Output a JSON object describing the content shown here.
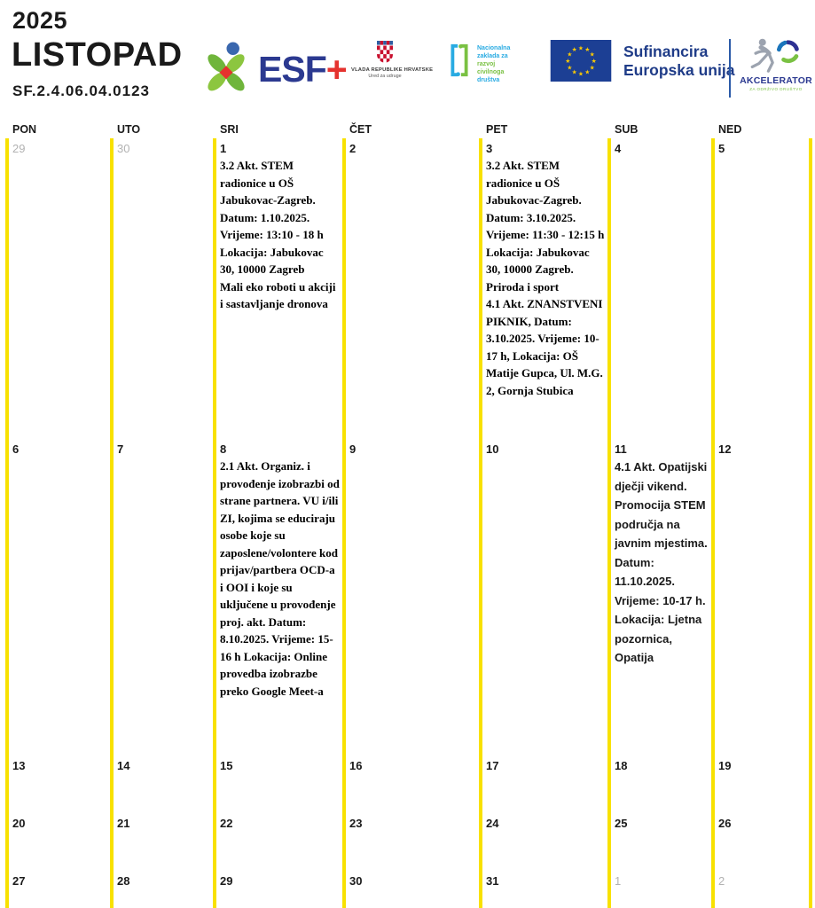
{
  "title": {
    "year": "2025",
    "month": "LISTOPAD",
    "code": "SF.2.4.06.04.0123"
  },
  "logos": {
    "esf": {
      "label": "ESF",
      "plus": "+"
    },
    "vlada": {
      "line1": "VLADA REPUBLIKE HRVATSKE",
      "line2": "Ured za udruge"
    },
    "zaklada": {
      "lines": [
        "Nacionalna",
        "zaklada za",
        "razvoj",
        "civilnoga",
        "društva"
      ],
      "line_colors": [
        "#29ABE2",
        "#29ABE2",
        "#7AC143",
        "#7AC143",
        "#29ABE2"
      ]
    },
    "eu": {
      "line1": "Sufinancira",
      "line2": "Europska unija"
    },
    "akcelerator": {
      "name": "AKCELERATOR",
      "tagline": "ZA ODRŽIVO DRUŠTVO"
    }
  },
  "calendar": {
    "weekdays": [
      "PON",
      "UTO",
      "SRI",
      "ČET",
      "PET",
      "SUB",
      "NED"
    ],
    "weeks": [
      [
        {
          "day": "29",
          "outside": true
        },
        {
          "day": "30",
          "outside": true
        },
        {
          "day": "1",
          "event": {
            "style": "serif",
            "paragraphs": [
              "3.2 Akt. STEM radionice u OŠ Jabukovac-Zagreb. Datum: 1.10.2025. Vrijeme: 13:10 - 18 h Lokacija: Jabukovac 30, 10000 Zagreb",
              "Mali eko roboti u akciji i sastavljanje dronova"
            ]
          }
        },
        {
          "day": "2"
        },
        {
          "day": "3",
          "event": {
            "style": "serif",
            "paragraphs": [
              "3.2 Akt. STEM radionice u OŠ Jabukovac-Zagreb. Datum: 3.10.2025. Vrijeme: 11:30 - 12:15 h Lokacija: Jabukovac 30, 10000 Zagreb.",
              "Priroda i sport",
              "4.1 Akt. ZNANSTVENI PIKNIK, Datum: 3.10.2025. Vrijeme: 10-17 h, Lokacija: OŠ Matije Gupca, Ul. M.G. 2, Gornja Stubica"
            ]
          }
        },
        {
          "day": "4"
        },
        {
          "day": "5"
        }
      ],
      [
        {
          "day": "6"
        },
        {
          "day": "7"
        },
        {
          "day": "8",
          "event": {
            "style": "serif",
            "paragraphs": [
              "2.1 Akt. Organiz. i provođenje izobrazbi od strane partnera. VU i/ili ZI, kojima se educiraju osobe koje su zaposlene/volontere kod prijav/partbera OCD-a i OOI i koje su uključene u provođenje proj. akt. Datum: 8.10.2025. Vrijeme: 15-16 h Lokacija: Online provedba izobrazbe preko Google Meet-a"
            ]
          }
        },
        {
          "day": "9"
        },
        {
          "day": "10"
        },
        {
          "day": "11",
          "event": {
            "style": "sans",
            "paragraphs": [
              "4.1 Akt. Opatijski dječji vikend. Promocija STEM područja na javnim mjestima. Datum: 11.10.2025. Vrijeme: 10-17 h. Lokacija: Ljetna pozornica, Opatija"
            ]
          }
        },
        {
          "day": "12"
        }
      ],
      [
        {
          "day": "13"
        },
        {
          "day": "14"
        },
        {
          "day": "15"
        },
        {
          "day": "16"
        },
        {
          "day": "17"
        },
        {
          "day": "18"
        },
        {
          "day": "19"
        }
      ],
      [
        {
          "day": "20"
        },
        {
          "day": "21"
        },
        {
          "day": "22"
        },
        {
          "day": "23"
        },
        {
          "day": "24"
        },
        {
          "day": "25"
        },
        {
          "day": "26"
        }
      ],
      [
        {
          "day": "27"
        },
        {
          "day": "28"
        },
        {
          "day": "29"
        },
        {
          "day": "30"
        },
        {
          "day": "31"
        },
        {
          "day": "1",
          "outside": true
        },
        {
          "day": "2",
          "outside": true
        }
      ]
    ]
  },
  "colors": {
    "column_line_yellow": "#F8E100",
    "esf_blue": "#2B3990",
    "esf_red": "#E5322E",
    "esf_leaf_green": "#8CC63F",
    "eu_flag_blue": "#1C3F94",
    "eu_star_yellow": "#FFCC00",
    "eu_text_blue": "#1F3C88",
    "zaklada_blue": "#29ABE2",
    "zaklada_green": "#7AC143",
    "coat_red": "#C8102E",
    "outside_day_gray": "#B2B2B2"
  }
}
